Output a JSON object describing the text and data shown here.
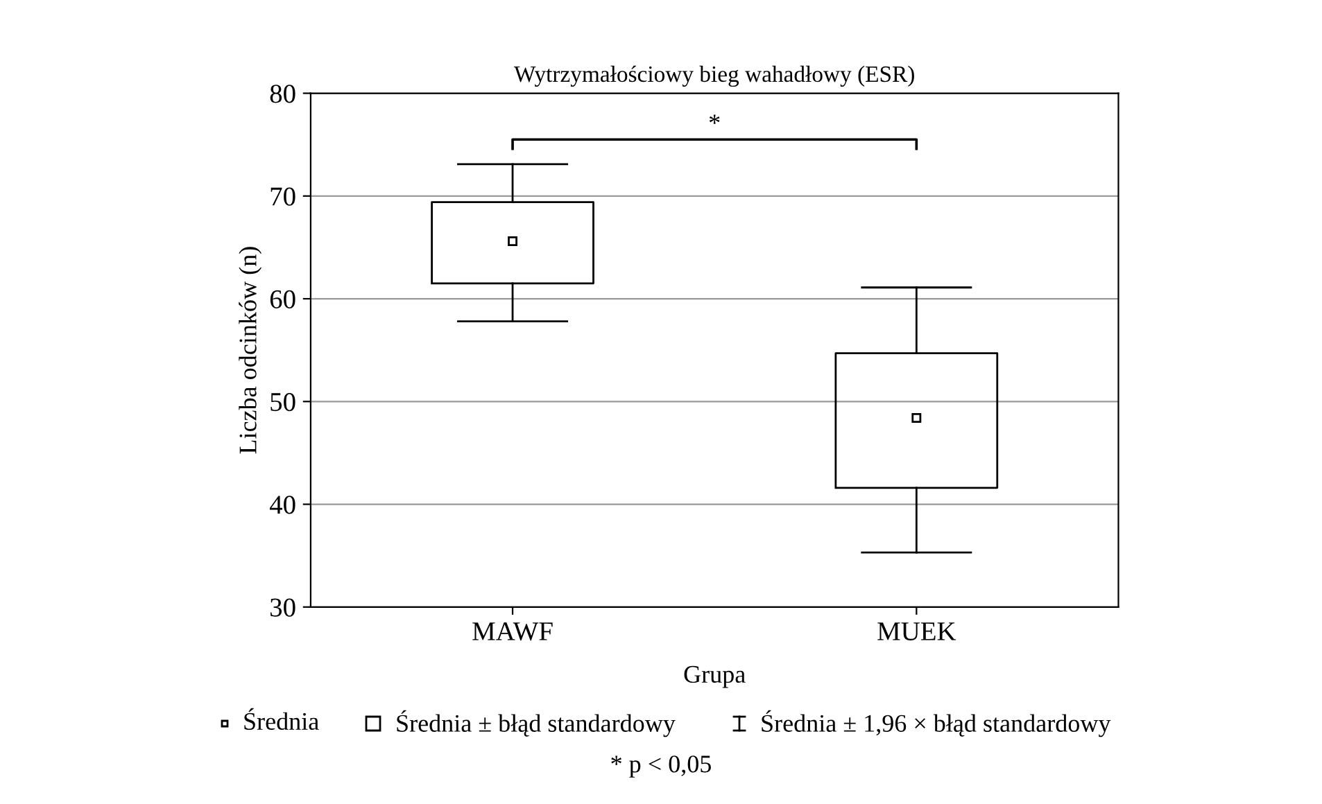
{
  "chart_data": {
    "type": "box",
    "title": "Wytrzymałościowy bieg wahadłowy (ESR)",
    "xlabel": "Grupa",
    "ylabel": "Liczba odcinków (n)",
    "categories": [
      "MAWF",
      "MUEK"
    ],
    "boxes": [
      {
        "low": 57.8,
        "q1": 61.5,
        "median": 65.6,
        "q3": 69.4,
        "high": 73.1
      },
      {
        "low": 35.3,
        "q1": 41.6,
        "median": 48.4,
        "q3": 54.7,
        "high": 61.1
      }
    ],
    "ylim": [
      30,
      80
    ],
    "yticks": [
      30,
      40,
      50,
      60,
      70,
      80
    ],
    "grid": "y",
    "annotations": [
      "*",
      "Średnia",
      "Średnia ± błąd standardowy",
      "Średnia ± 1,96 × błąd standardowy",
      "* p < 0,05"
    ]
  }
}
